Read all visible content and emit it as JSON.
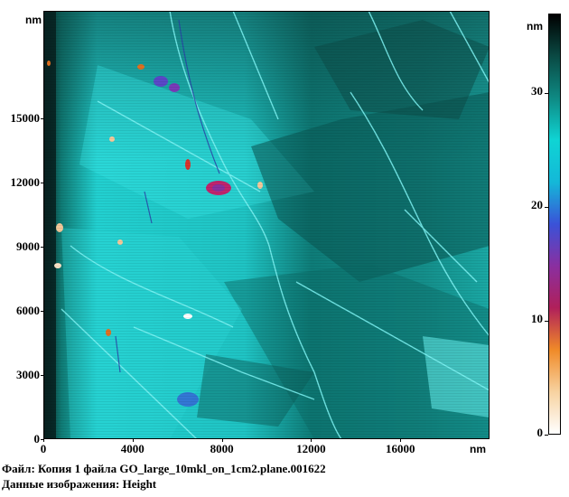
{
  "image": {
    "x_axis": {
      "unit": "nm",
      "tick_labels": [
        "0",
        "4000",
        "8000",
        "12000",
        "16000"
      ],
      "tick_values": [
        0,
        4000,
        8000,
        12000,
        16000
      ]
    },
    "y_axis": {
      "unit": "nm",
      "tick_labels": [
        "0",
        "3000",
        "6000",
        "9000",
        "12000",
        "15000"
      ],
      "tick_values": [
        0,
        3000,
        6000,
        9000,
        12000,
        15000
      ]
    },
    "extent_nm": 20000,
    "palette": [
      "#0a1a18",
      "#0b3a36",
      "#0e6e6a",
      "#18c8c8",
      "#35e8e8",
      "#8a2f9a",
      "#c8248a",
      "#e07020",
      "#f5c89a",
      "#ffffff"
    ]
  },
  "colorbar": {
    "unit": "nm",
    "tick_labels": [
      "0",
      "10",
      "20",
      "30"
    ],
    "tick_values": [
      0,
      10,
      20,
      30
    ],
    "max_value": 37,
    "stops": [
      "#ffffff",
      "#f7d2a0",
      "#f08a28",
      "#b0205a",
      "#8a2fa0",
      "#3a52d8",
      "#14b8d8",
      "#0fd4d4",
      "#0e8a84",
      "#0a4a44",
      "#000000"
    ]
  },
  "info": {
    "file_line": "Файл: Копия 1 файла GO_large_10mkl_on_1cm2.plane.001622",
    "data_line": "Данные изображения: Height"
  }
}
